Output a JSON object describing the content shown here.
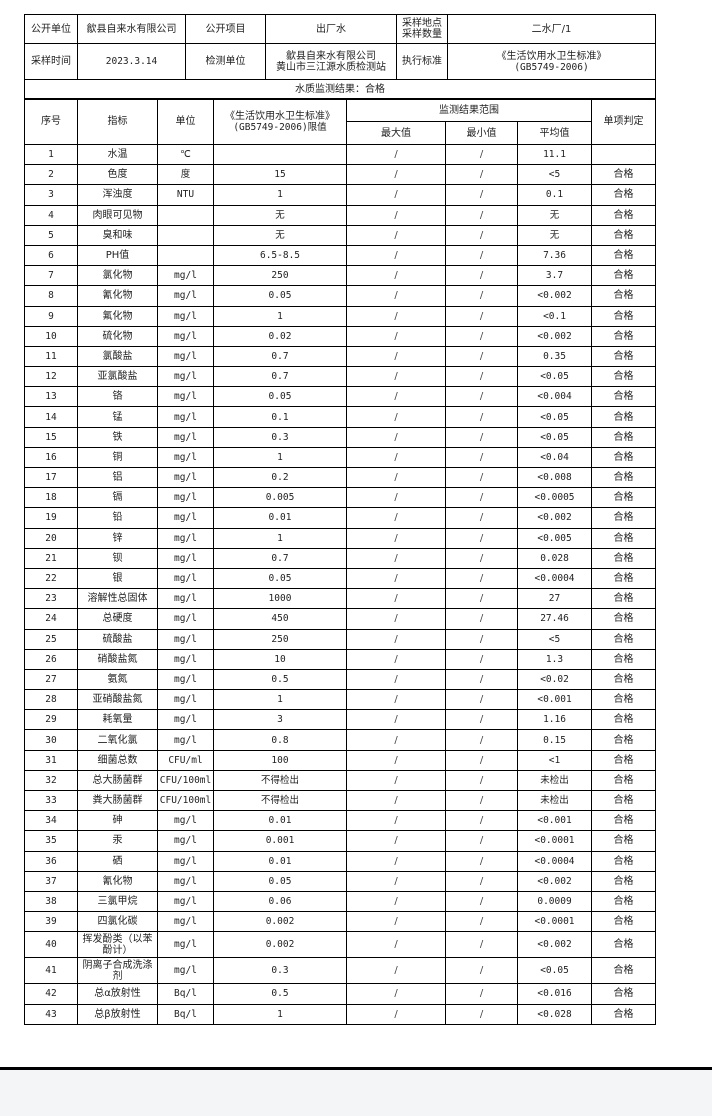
{
  "info": {
    "publisher_label": "公开单位",
    "publisher": "歙县自来水有限公司",
    "item_label": "公开项目",
    "item": "出厂水",
    "site_label": "采样地点\n采样数量",
    "site": "二水厂/1",
    "time_label": "采样时间",
    "time": "2023.3.14",
    "lab_label": "检测单位",
    "lab_line1": "歙县自来水有限公司",
    "lab_line2": "黄山市三江源水质检测站",
    "standard_label": "执行标准",
    "standard_line1": "《生活饮用水卫生标准》",
    "standard_line2": "(GB5749-2006)",
    "result_summary": "水质监测结果：合格"
  },
  "headers": {
    "no": "序号",
    "indicator": "指标",
    "unit": "单位",
    "limit_line1": "《生活饮用水卫生标准》",
    "limit_line2": "(GB5749-2006)限值",
    "range": "监测结果范围",
    "max": "最大值",
    "min": "最小值",
    "avg": "平均值",
    "judgment": "单项判定"
  },
  "rows": [
    {
      "no": "1",
      "name": "水温",
      "unit": "℃",
      "limit": "",
      "max": "/",
      "min": "/",
      "avg": "11.1",
      "judge": ""
    },
    {
      "no": "2",
      "name": "色度",
      "unit": "度",
      "limit": "15",
      "max": "/",
      "min": "/",
      "avg": "<5",
      "judge": "合格"
    },
    {
      "no": "3",
      "name": "浑浊度",
      "unit": "NTU",
      "limit": "1",
      "max": "/",
      "min": "/",
      "avg": "0.1",
      "judge": "合格"
    },
    {
      "no": "4",
      "name": "肉眼可见物",
      "unit": "",
      "limit": "无",
      "max": "/",
      "min": "/",
      "avg": "无",
      "judge": "合格"
    },
    {
      "no": "5",
      "name": "臭和味",
      "unit": "",
      "limit": "无",
      "max": "/",
      "min": "/",
      "avg": "无",
      "judge": "合格"
    },
    {
      "no": "6",
      "name": "PH值",
      "unit": "",
      "limit": "6.5-8.5",
      "max": "/",
      "min": "/",
      "avg": "7.36",
      "judge": "合格"
    },
    {
      "no": "7",
      "name": "氯化物",
      "unit": "mg/l",
      "limit": "250",
      "max": "/",
      "min": "/",
      "avg": "3.7",
      "judge": "合格"
    },
    {
      "no": "8",
      "name": "氰化物",
      "unit": "mg/l",
      "limit": "0.05",
      "max": "/",
      "min": "/",
      "avg": "<0.002",
      "judge": "合格"
    },
    {
      "no": "9",
      "name": "氟化物",
      "unit": "mg/l",
      "limit": "1",
      "max": "/",
      "min": "/",
      "avg": "<0.1",
      "judge": "合格"
    },
    {
      "no": "10",
      "name": "硫化物",
      "unit": "mg/l",
      "limit": "0.02",
      "max": "/",
      "min": "/",
      "avg": "<0.002",
      "judge": "合格"
    },
    {
      "no": "11",
      "name": "氯酸盐",
      "unit": "mg/l",
      "limit": "0.7",
      "max": "/",
      "min": "/",
      "avg": "0.35",
      "judge": "合格"
    },
    {
      "no": "12",
      "name": "亚氯酸盐",
      "unit": "mg/l",
      "limit": "0.7",
      "max": "/",
      "min": "/",
      "avg": "<0.05",
      "judge": "合格"
    },
    {
      "no": "13",
      "name": "铬",
      "unit": "mg/l",
      "limit": "0.05",
      "max": "/",
      "min": "/",
      "avg": "<0.004",
      "judge": "合格"
    },
    {
      "no": "14",
      "name": "锰",
      "unit": "mg/l",
      "limit": "0.1",
      "max": "/",
      "min": "/",
      "avg": "<0.05",
      "judge": "合格"
    },
    {
      "no": "15",
      "name": "铁",
      "unit": "mg/l",
      "limit": "0.3",
      "max": "/",
      "min": "/",
      "avg": "<0.05",
      "judge": "合格"
    },
    {
      "no": "16",
      "name": "铜",
      "unit": "mg/l",
      "limit": "1",
      "max": "/",
      "min": "/",
      "avg": "<0.04",
      "judge": "合格"
    },
    {
      "no": "17",
      "name": "铝",
      "unit": "mg/l",
      "limit": "0.2",
      "max": "/",
      "min": "/",
      "avg": "<0.008",
      "judge": "合格"
    },
    {
      "no": "18",
      "name": "镉",
      "unit": "mg/l",
      "limit": "0.005",
      "max": "/",
      "min": "/",
      "avg": "<0.0005",
      "judge": "合格"
    },
    {
      "no": "19",
      "name": "铅",
      "unit": "mg/l",
      "limit": "0.01",
      "max": "/",
      "min": "/",
      "avg": "<0.002",
      "judge": "合格"
    },
    {
      "no": "20",
      "name": "锌",
      "unit": "mg/l",
      "limit": "1",
      "max": "/",
      "min": "/",
      "avg": "<0.005",
      "judge": "合格"
    },
    {
      "no": "21",
      "name": "钡",
      "unit": "mg/l",
      "limit": "0.7",
      "max": "/",
      "min": "/",
      "avg": "0.028",
      "judge": "合格"
    },
    {
      "no": "22",
      "name": "银",
      "unit": "mg/l",
      "limit": "0.05",
      "max": "/",
      "min": "/",
      "avg": "<0.0004",
      "judge": "合格"
    },
    {
      "no": "23",
      "name": "溶解性总固体",
      "unit": "mg/l",
      "limit": "1000",
      "max": "/",
      "min": "/",
      "avg": "27",
      "judge": "合格"
    },
    {
      "no": "24",
      "name": "总硬度",
      "unit": "mg/l",
      "limit": "450",
      "max": "/",
      "min": "/",
      "avg": "27.46",
      "judge": "合格"
    },
    {
      "no": "25",
      "name": "硫酸盐",
      "unit": "mg/l",
      "limit": "250",
      "max": "/",
      "min": "/",
      "avg": "<5",
      "judge": "合格"
    },
    {
      "no": "26",
      "name": "硝酸盐氮",
      "unit": "mg/l",
      "limit": "10",
      "max": "/",
      "min": "/",
      "avg": "1.3",
      "judge": "合格"
    },
    {
      "no": "27",
      "name": "氨氮",
      "unit": "mg/l",
      "limit": "0.5",
      "max": "/",
      "min": "/",
      "avg": "<0.02",
      "judge": "合格"
    },
    {
      "no": "28",
      "name": "亚硝酸盐氮",
      "unit": "mg/l",
      "limit": "1",
      "max": "/",
      "min": "/",
      "avg": "<0.001",
      "judge": "合格"
    },
    {
      "no": "29",
      "name": "耗氧量",
      "unit": "mg/l",
      "limit": "3",
      "max": "/",
      "min": "/",
      "avg": "1.16",
      "judge": "合格"
    },
    {
      "no": "30",
      "name": "二氧化氯",
      "unit": "mg/l",
      "limit": "0.8",
      "max": "/",
      "min": "/",
      "avg": "0.15",
      "judge": "合格"
    },
    {
      "no": "31",
      "name": "细菌总数",
      "unit": "CFU/ml",
      "limit": "100",
      "max": "/",
      "min": "/",
      "avg": "<1",
      "judge": "合格"
    },
    {
      "no": "32",
      "name": "总大肠菌群",
      "unit": "CFU/100ml",
      "limit": "不得检出",
      "max": "/",
      "min": "/",
      "avg": "未检出",
      "judge": "合格"
    },
    {
      "no": "33",
      "name": "粪大肠菌群",
      "unit": "CFU/100ml",
      "limit": "不得检出",
      "max": "/",
      "min": "/",
      "avg": "未检出",
      "judge": "合格"
    },
    {
      "no": "34",
      "name": "砷",
      "unit": "mg/l",
      "limit": "0.01",
      "max": "/",
      "min": "/",
      "avg": "<0.001",
      "judge": "合格"
    },
    {
      "no": "35",
      "name": "汞",
      "unit": "mg/l",
      "limit": "0.001",
      "max": "/",
      "min": "/",
      "avg": "<0.0001",
      "judge": "合格"
    },
    {
      "no": "36",
      "name": "硒",
      "unit": "mg/l",
      "limit": "0.01",
      "max": "/",
      "min": "/",
      "avg": "<0.0004",
      "judge": "合格"
    },
    {
      "no": "37",
      "name": "氰化物",
      "unit": "mg/l",
      "limit": "0.05",
      "max": "/",
      "min": "/",
      "avg": "<0.002",
      "judge": "合格"
    },
    {
      "no": "38",
      "name": "三氯甲烷",
      "unit": "mg/l",
      "limit": "0.06",
      "max": "/",
      "min": "/",
      "avg": "0.0009",
      "judge": "合格"
    },
    {
      "no": "39",
      "name": "四氯化碳",
      "unit": "mg/l",
      "limit": "0.002",
      "max": "/",
      "min": "/",
      "avg": "<0.0001",
      "judge": "合格"
    },
    {
      "no": "40",
      "name": "挥发酚类（以苯酚计）",
      "unit": "mg/l",
      "limit": "0.002",
      "max": "/",
      "min": "/",
      "avg": "<0.002",
      "judge": "合格"
    },
    {
      "no": "41",
      "name": "阴离子合成洗涤剂",
      "unit": "mg/l",
      "limit": "0.3",
      "max": "/",
      "min": "/",
      "avg": "<0.05",
      "judge": "合格"
    },
    {
      "no": "42",
      "name": "总α放射性",
      "unit": "Bq/l",
      "limit": "0.5",
      "max": "/",
      "min": "/",
      "avg": "<0.016",
      "judge": "合格"
    },
    {
      "no": "43",
      "name": "总β放射性",
      "unit": "Bq/l",
      "limit": "1",
      "max": "/",
      "min": "/",
      "avg": "<0.028",
      "judge": "合格"
    }
  ]
}
